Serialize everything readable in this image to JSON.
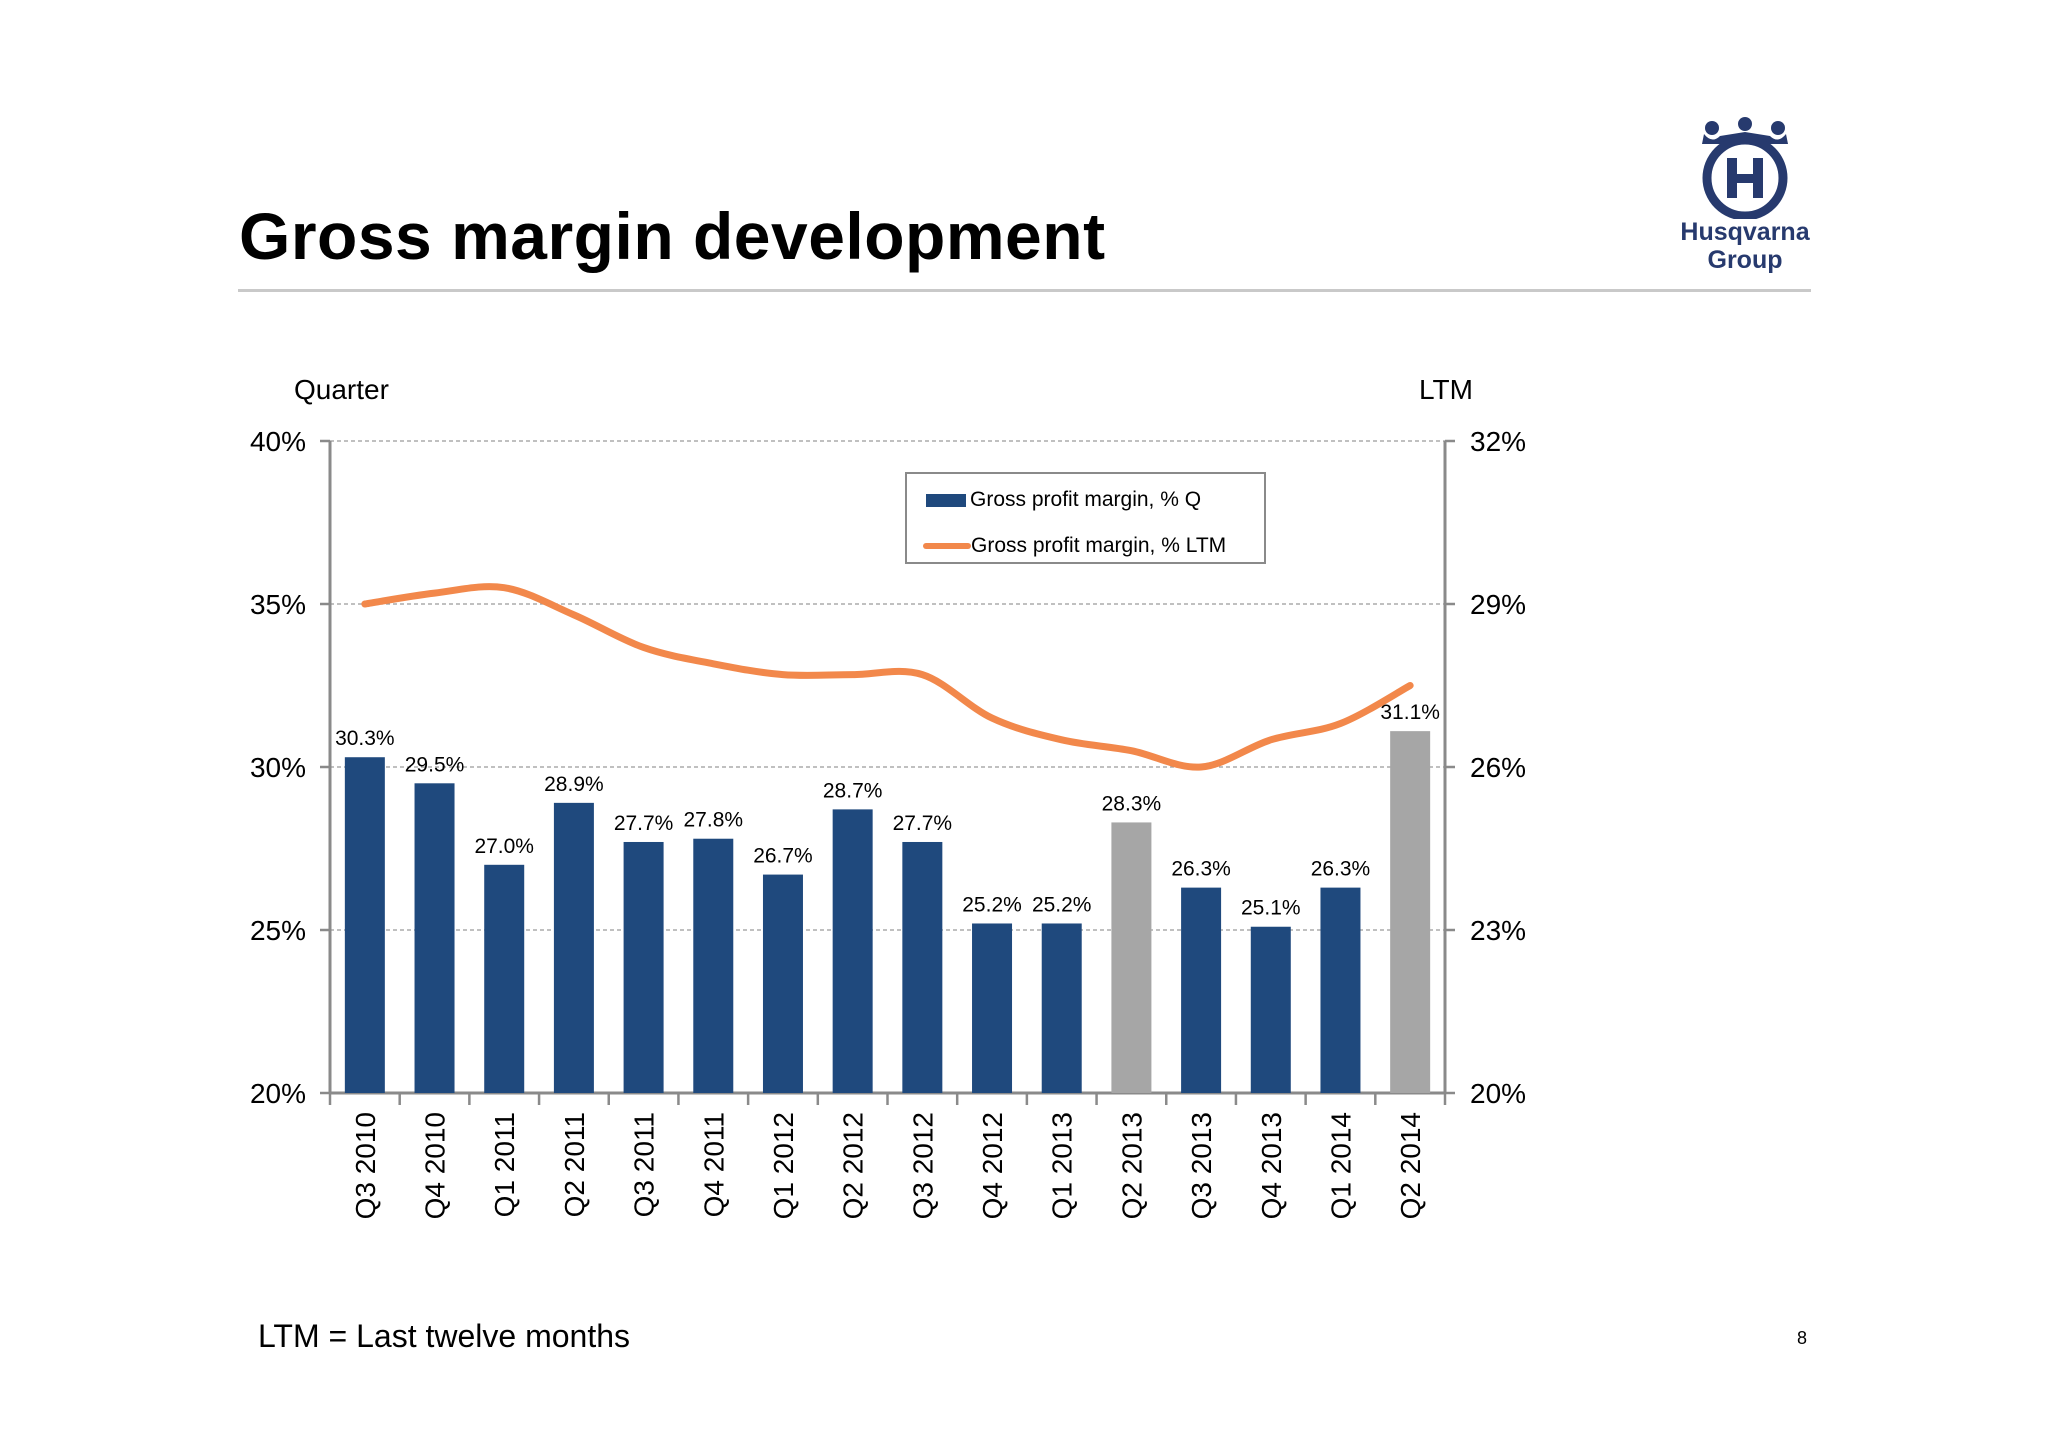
{
  "slide": {
    "title": "Gross margin development",
    "footnote": "LTM = Last twelve months",
    "page_number": "8",
    "logo": {
      "line1": "Husqvarna",
      "line2": "Group",
      "color": "#273a6e",
      "icon": "crown-h-logo"
    }
  },
  "chart_data": {
    "type": "bar",
    "left_axis_title": "Quarter",
    "right_axis_title": "LTM",
    "left_ylim": [
      20,
      40
    ],
    "right_ylim": [
      20,
      32
    ],
    "left_ticks": [
      "40%",
      "35%",
      "30%",
      "25%",
      "20%"
    ],
    "right_ticks": [
      "32%",
      "29%",
      "26%",
      "23%",
      "20%"
    ],
    "grid": true,
    "legend_position": "top-right",
    "categories": [
      "Q3 2010",
      "Q4 2010",
      "Q1 2011",
      "Q2 2011",
      "Q3 2011",
      "Q4 2011",
      "Q1 2012",
      "Q2 2012",
      "Q3 2012",
      "Q4 2012",
      "Q1 2013",
      "Q2 2013",
      "Q3 2013",
      "Q4 2013",
      "Q1 2014",
      "Q2 2014"
    ],
    "series": [
      {
        "name": "Gross profit margin, % Q",
        "type": "bar",
        "axis": "left",
        "color": "#1f497d",
        "highlight_color": "#a6a6a6",
        "highlight_categories": [
          "Q2 2013",
          "Q2 2014"
        ],
        "values": [
          30.3,
          29.5,
          27.0,
          28.9,
          27.7,
          27.8,
          26.7,
          28.7,
          27.7,
          25.2,
          25.2,
          28.3,
          26.3,
          25.1,
          26.3,
          31.1
        ],
        "labels": [
          "30.3%",
          "29.5%",
          "27.0%",
          "28.9%",
          "27.7%",
          "27.8%",
          "26.7%",
          "28.7%",
          "27.7%",
          "25.2%",
          "25.2%",
          "28.3%",
          "26.3%",
          "25.1%",
          "26.3%",
          "31.1%"
        ]
      },
      {
        "name": "Gross profit margin, % LTM",
        "type": "line",
        "axis": "right",
        "color": "#f2884b",
        "values": [
          29.0,
          29.2,
          29.3,
          28.8,
          28.2,
          27.9,
          27.7,
          27.7,
          27.7,
          26.9,
          26.5,
          26.3,
          26.0,
          26.5,
          26.8,
          27.5
        ]
      }
    ]
  }
}
